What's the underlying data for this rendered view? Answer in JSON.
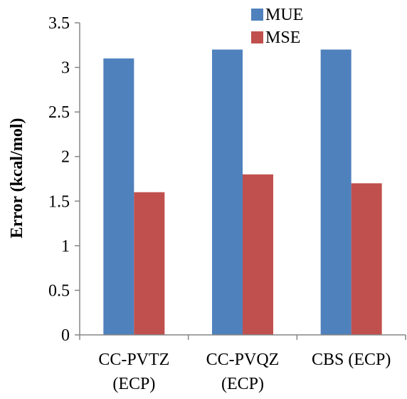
{
  "chart_data": {
    "type": "bar",
    "title": "",
    "xlabel": "",
    "ylabel": "Error (kcal/mol)",
    "categories": [
      [
        "CC-PVTZ",
        "(ECP)"
      ],
      [
        "CC-PVQZ",
        "(ECP)"
      ],
      [
        "CBS (ECP)"
      ]
    ],
    "series": [
      {
        "name": "MUE",
        "color": "#4f81bd",
        "values": [
          3.1,
          3.2,
          3.2
        ]
      },
      {
        "name": "MSE",
        "color": "#c0504d",
        "values": [
          1.6,
          1.8,
          1.7
        ]
      }
    ],
    "ylim": [
      0,
      3.5
    ],
    "yticks": [
      "0",
      "0.5",
      "1",
      "1.5",
      "2",
      "2.5",
      "3",
      "3.5"
    ],
    "grid": false,
    "legend_position": "top-right"
  }
}
